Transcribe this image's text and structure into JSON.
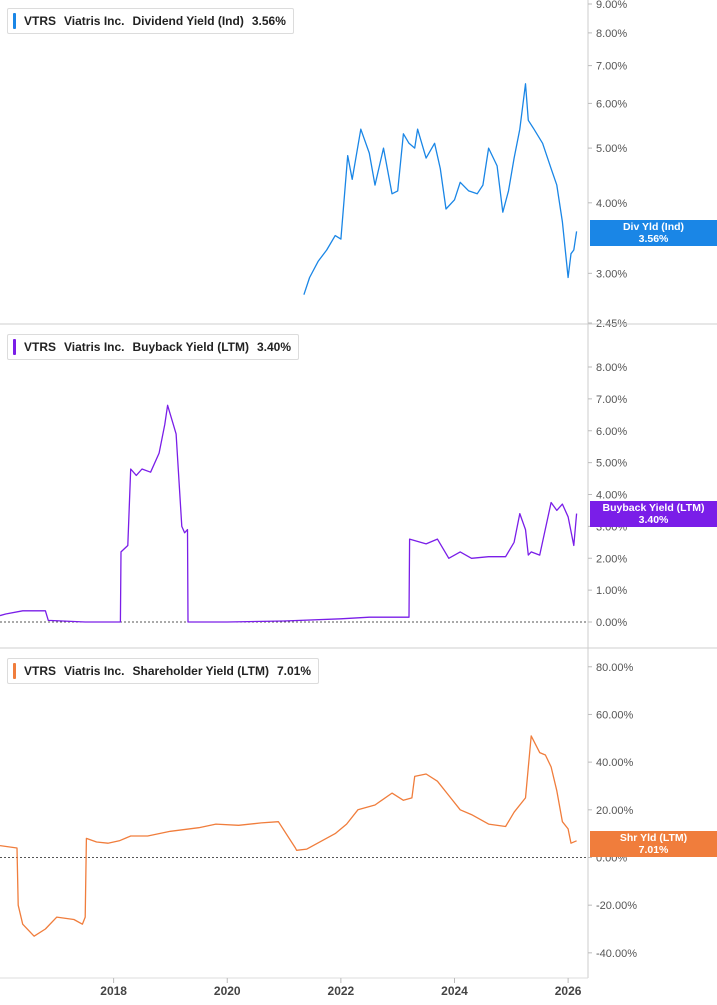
{
  "chart_data": [
    {
      "type": "line",
      "ticker": "VTRS",
      "company": "Viatris Inc.",
      "metric": "Dividend Yield (Ind)",
      "current_value": "3.56%",
      "flag_label": "Div Yld (Ind)",
      "flag_value": "3.56%",
      "color": "#1a86e6",
      "scale": "log",
      "ylim": [
        2.45,
        9.0
      ],
      "y_ticks": [
        "9.00%",
        "8.00%",
        "7.00%",
        "6.00%",
        "5.00%",
        "4.00%",
        "3.00%",
        "2.45%"
      ],
      "y_tick_values": [
        9.0,
        8.0,
        7.0,
        6.0,
        5.0,
        4.0,
        3.0,
        2.45
      ],
      "x": [
        2021.35,
        2021.45,
        2021.6,
        2021.75,
        2021.9,
        2022.0,
        2022.12,
        2022.2,
        2022.35,
        2022.5,
        2022.6,
        2022.75,
        2022.9,
        2023.0,
        2023.1,
        2023.2,
        2023.3,
        2023.35,
        2023.5,
        2023.65,
        2023.75,
        2023.85,
        2024.0,
        2024.1,
        2024.25,
        2024.4,
        2024.5,
        2024.6,
        2024.75,
        2024.85,
        2024.95,
        2025.05,
        2025.15,
        2025.25,
        2025.3,
        2025.4,
        2025.55,
        2025.7,
        2025.8,
        2025.9,
        2026.0,
        2026.05,
        2026.1,
        2026.15
      ],
      "values": [
        2.75,
        2.95,
        3.15,
        3.3,
        3.5,
        3.45,
        4.85,
        4.4,
        5.4,
        4.9,
        4.3,
        5.0,
        4.15,
        4.2,
        5.3,
        5.1,
        5.0,
        5.4,
        4.8,
        5.1,
        4.6,
        3.9,
        4.05,
        4.35,
        4.2,
        4.15,
        4.3,
        5.0,
        4.65,
        3.85,
        4.2,
        4.8,
        5.4,
        6.5,
        5.6,
        5.4,
        5.1,
        4.6,
        4.3,
        3.7,
        2.95,
        3.25,
        3.3,
        3.56
      ]
    },
    {
      "type": "line",
      "ticker": "VTRS",
      "company": "Viatris Inc.",
      "metric": "Buyback Yield (LTM)",
      "current_value": "3.40%",
      "flag_label": "Buyback Yield (LTM)",
      "flag_value": "3.40%",
      "color": "#7a1ee8",
      "ylim": [
        0,
        8.0
      ],
      "y_ticks": [
        "8.00%",
        "7.00%",
        "6.00%",
        "5.00%",
        "4.00%",
        "3.00%",
        "2.00%",
        "1.00%",
        "0.00%"
      ],
      "y_tick_values": [
        8,
        7,
        6,
        5,
        4,
        3,
        2,
        1,
        0
      ],
      "x": [
        2016.0,
        2016.1,
        2016.4,
        2016.8,
        2016.85,
        2017.5,
        2018.12,
        2018.13,
        2018.25,
        2018.3,
        2018.4,
        2018.5,
        2018.65,
        2018.8,
        2018.9,
        2018.95,
        2019.05,
        2019.1,
        2019.2,
        2019.25,
        2019.3,
        2019.31,
        2020.0,
        2021.0,
        2022.0,
        2022.5,
        2023.2,
        2023.21,
        2023.5,
        2023.7,
        2023.9,
        2024.1,
        2024.3,
        2024.6,
        2024.9,
        2025.05,
        2025.15,
        2025.25,
        2025.3,
        2025.35,
        2025.5,
        2025.7,
        2025.8,
        2025.9,
        2026.0,
        2026.1,
        2026.15
      ],
      "values": [
        0.2,
        0.25,
        0.35,
        0.35,
        0.05,
        0.0,
        0.0,
        2.2,
        2.4,
        4.8,
        4.6,
        4.8,
        4.7,
        5.3,
        6.2,
        6.8,
        6.2,
        5.9,
        3.0,
        2.8,
        2.9,
        0.0,
        0.0,
        0.03,
        0.1,
        0.15,
        0.15,
        2.6,
        2.45,
        2.6,
        2.0,
        2.2,
        2.0,
        2.05,
        2.05,
        2.5,
        3.4,
        2.9,
        2.1,
        2.2,
        2.1,
        3.75,
        3.5,
        3.7,
        3.3,
        2.4,
        3.4
      ]
    },
    {
      "type": "line",
      "ticker": "VTRS",
      "company": "Viatris Inc.",
      "metric": "Shareholder Yield (LTM)",
      "current_value": "7.01%",
      "flag_label": "Shr Yld (LTM)",
      "flag_value": "7.01%",
      "color": "#f07d3c",
      "ylim": [
        -43,
        82
      ],
      "y_ticks": [
        "80.00%",
        "60.00%",
        "40.00%",
        "20.00%",
        "0.00%",
        "-20.00%",
        "-40.00%"
      ],
      "y_tick_values": [
        80,
        60,
        40,
        20,
        0,
        -20,
        -40
      ],
      "x": [
        2016.0,
        2016.3,
        2016.32,
        2016.4,
        2016.6,
        2016.8,
        2017.0,
        2017.3,
        2017.45,
        2017.5,
        2017.52,
        2017.7,
        2017.9,
        2018.1,
        2018.3,
        2018.6,
        2019.0,
        2019.5,
        2019.8,
        2020.2,
        2020.6,
        2020.9,
        2021.2,
        2021.22,
        2021.4,
        2021.9,
        2022.1,
        2022.3,
        2022.6,
        2022.9,
        2023.1,
        2023.25,
        2023.3,
        2023.5,
        2023.7,
        2023.9,
        2024.1,
        2024.3,
        2024.6,
        2024.9,
        2025.05,
        2025.25,
        2025.35,
        2025.5,
        2025.6,
        2025.7,
        2025.8,
        2025.9,
        2026.0,
        2026.05,
        2026.15
      ],
      "values": [
        5.0,
        4.0,
        -20.0,
        -28.0,
        -33.0,
        -30.0,
        -25.0,
        -26.0,
        -28.0,
        -25.0,
        8.0,
        6.5,
        6.0,
        7.0,
        9.0,
        9.0,
        11.0,
        12.5,
        14.0,
        13.5,
        14.5,
        15.0,
        4.0,
        3.0,
        3.5,
        10.0,
        14.0,
        20.0,
        22.0,
        27.0,
        24.0,
        25.0,
        34.0,
        35.0,
        32.0,
        26.0,
        20.0,
        18.0,
        14.0,
        13.0,
        19.0,
        25.0,
        51.0,
        44.0,
        43.0,
        38.0,
        28.0,
        15.0,
        12.0,
        6.0,
        7.01
      ]
    }
  ],
  "x_axis": {
    "ticks": [
      "2018",
      "2020",
      "2022",
      "2024",
      "2026"
    ],
    "tick_values": [
      2018,
      2020,
      2022,
      2024,
      2026
    ],
    "range": [
      2016.0,
      2026.35
    ]
  }
}
